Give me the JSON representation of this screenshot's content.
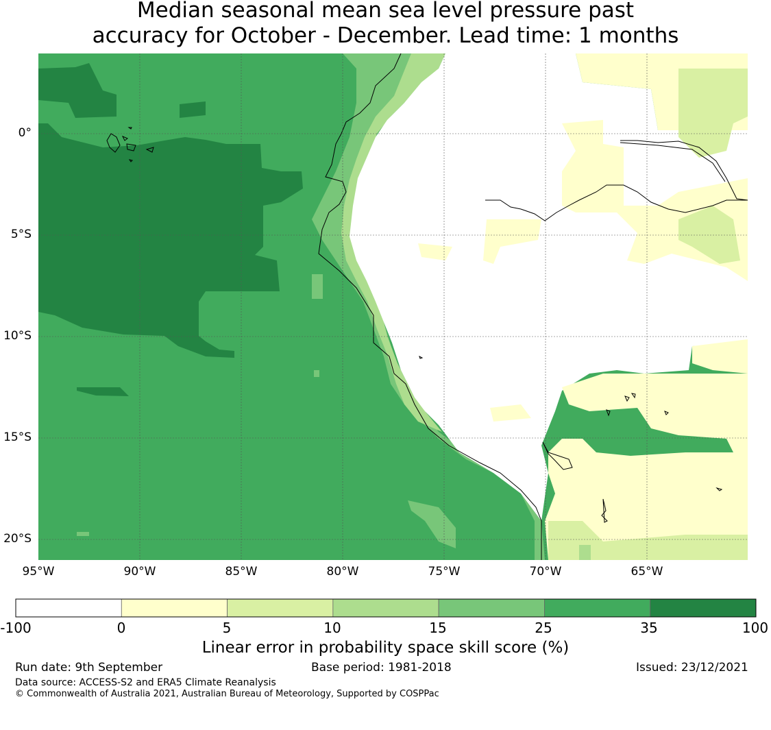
{
  "title": {
    "line1": "Median seasonal mean sea level pressure past",
    "line2": "accuracy for October - December. Lead time: 1 months"
  },
  "map": {
    "lon_labels": [
      "95°W",
      "90°W",
      "85°W",
      "80°W",
      "75°W",
      "70°W",
      "65°W"
    ],
    "lat_labels": [
      "0°",
      "5°S",
      "10°S",
      "15°S",
      "20°S"
    ],
    "lon_range": [
      -95,
      -60
    ],
    "lat_range": [
      -21,
      4
    ],
    "grid": true
  },
  "colorbar": {
    "label": "Linear error in probability space skill score (%)",
    "ticks": [
      "-100",
      "0",
      "5",
      "10",
      "15",
      "25",
      "35",
      "100"
    ],
    "bins": [
      {
        "range": "-100 to 0",
        "color": "#ffffff"
      },
      {
        "range": "0 to 5",
        "color": "#ffffcc"
      },
      {
        "range": "5 to 10",
        "color": "#d9f0a3"
      },
      {
        "range": "10 to 15",
        "color": "#addd8e"
      },
      {
        "range": "15 to 25",
        "color": "#78c679"
      },
      {
        "range": "25 to 35",
        "color": "#41ab5d"
      },
      {
        "range": "35 to 100",
        "color": "#238443"
      }
    ]
  },
  "footer": {
    "run_date": "Run date: 9th September",
    "base_period": "Base period: 1981-2018",
    "issued": "Issued: 23/12/2021",
    "source": "Data source: ACCESS-S2 and ERA5 Climate Reanalysis",
    "copyright": "© Commonwealth of Australia 2021, Australian Bureau of Meteorology, Supported by COSPPac"
  }
}
